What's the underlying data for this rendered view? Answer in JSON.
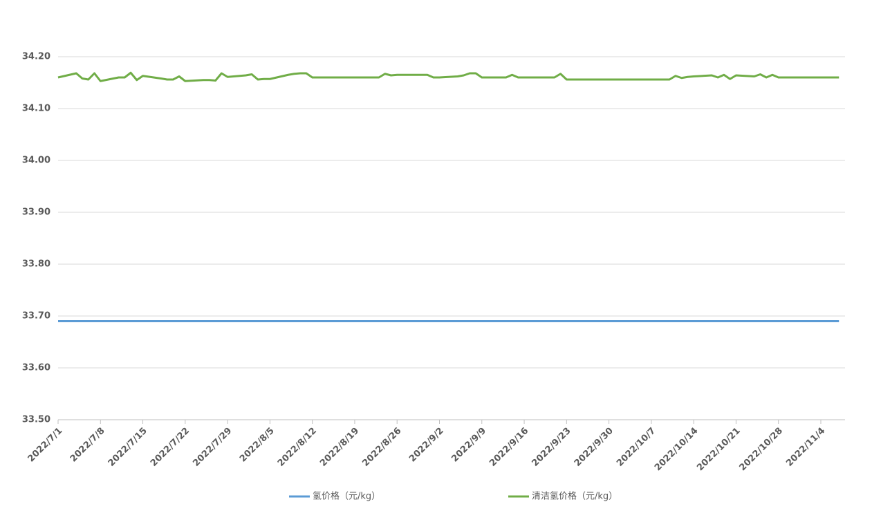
{
  "chart_data": {
    "type": "line",
    "x": [
      "2022/7/1",
      "2022/7/4",
      "2022/7/5",
      "2022/7/6",
      "2022/7/7",
      "2022/7/8",
      "2022/7/11",
      "2022/7/12",
      "2022/7/13",
      "2022/7/14",
      "2022/7/15",
      "2022/7/18",
      "2022/7/19",
      "2022/7/20",
      "2022/7/21",
      "2022/7/22",
      "2022/7/25",
      "2022/7/26",
      "2022/7/27",
      "2022/7/28",
      "2022/7/29",
      "2022/8/1",
      "2022/8/2",
      "2022/8/3",
      "2022/8/4",
      "2022/8/5",
      "2022/8/8",
      "2022/8/9",
      "2022/8/10",
      "2022/8/11",
      "2022/8/12",
      "2022/8/15",
      "2022/8/16",
      "2022/8/17",
      "2022/8/18",
      "2022/8/19",
      "2022/8/22",
      "2022/8/23",
      "2022/8/24",
      "2022/8/25",
      "2022/8/26",
      "2022/8/29",
      "2022/8/30",
      "2022/8/31",
      "2022/9/1",
      "2022/9/2",
      "2022/9/5",
      "2022/9/6",
      "2022/9/7",
      "2022/9/8",
      "2022/9/9",
      "2022/9/12",
      "2022/9/13",
      "2022/9/14",
      "2022/9/15",
      "2022/9/16",
      "2022/9/19",
      "2022/9/20",
      "2022/9/21",
      "2022/9/22",
      "2022/9/23",
      "2022/9/26",
      "2022/9/27",
      "2022/9/28",
      "2022/9/29",
      "2022/9/30",
      "2022/10/10",
      "2022/10/11",
      "2022/10/12",
      "2022/10/13",
      "2022/10/14",
      "2022/10/17",
      "2022/10/18",
      "2022/10/19",
      "2022/10/20",
      "2022/10/21",
      "2022/10/24",
      "2022/10/25",
      "2022/10/26",
      "2022/10/27",
      "2022/10/28",
      "2022/10/31",
      "2022/11/1",
      "2022/11/2",
      "2022/11/3",
      "2022/11/4",
      "2022/11/7"
    ],
    "series": [
      {
        "name": "氢价格（元/kg）",
        "color": "#5b9bd5",
        "values": [
          33.69,
          33.69,
          33.69,
          33.69,
          33.69,
          33.69,
          33.69,
          33.69,
          33.69,
          33.69,
          33.69,
          33.69,
          33.69,
          33.69,
          33.69,
          33.69,
          33.69,
          33.69,
          33.69,
          33.69,
          33.69,
          33.69,
          33.69,
          33.69,
          33.69,
          33.69,
          33.69,
          33.69,
          33.69,
          33.69,
          33.69,
          33.69,
          33.69,
          33.69,
          33.69,
          33.69,
          33.69,
          33.69,
          33.69,
          33.69,
          33.69,
          33.69,
          33.69,
          33.69,
          33.69,
          33.69,
          33.69,
          33.69,
          33.69,
          33.69,
          33.69,
          33.69,
          33.69,
          33.69,
          33.69,
          33.69,
          33.69,
          33.69,
          33.69,
          33.69,
          33.69,
          33.69,
          33.69,
          33.69,
          33.69,
          33.69,
          33.69,
          33.69,
          33.69,
          33.69,
          33.69,
          33.69,
          33.69,
          33.69,
          33.69,
          33.69,
          33.69,
          33.69,
          33.69,
          33.69,
          33.69,
          33.69,
          33.69,
          33.69,
          33.69,
          33.69,
          33.69
        ]
      },
      {
        "name": "清洁氢价格（元/kg）",
        "color": "#70ad47",
        "values": [
          34.16,
          34.168,
          34.158,
          34.156,
          34.168,
          34.153,
          34.16,
          34.16,
          34.169,
          34.155,
          34.163,
          34.158,
          34.156,
          34.156,
          34.162,
          34.153,
          34.155,
          34.155,
          34.154,
          34.168,
          34.161,
          34.164,
          34.166,
          34.156,
          34.157,
          34.157,
          34.165,
          34.167,
          34.168,
          34.168,
          34.16,
          34.16,
          34.16,
          34.16,
          34.16,
          34.16,
          34.16,
          34.16,
          34.167,
          34.164,
          34.165,
          34.165,
          34.165,
          34.165,
          34.16,
          34.16,
          34.162,
          34.164,
          34.168,
          34.168,
          34.16,
          34.16,
          34.16,
          34.165,
          34.16,
          34.16,
          34.16,
          34.16,
          34.16,
          34.167,
          34.156,
          34.156,
          34.156,
          34.156,
          34.156,
          34.156,
          34.156,
          34.163,
          34.159,
          34.161,
          34.162,
          34.164,
          34.16,
          34.165,
          34.157,
          34.164,
          34.162,
          34.166,
          34.16,
          34.165,
          34.16,
          34.16,
          34.16,
          34.16,
          34.16,
          34.16,
          34.16
        ]
      }
    ],
    "xlim": [
      "2022/7/1",
      "2022/11/8"
    ],
    "xticks": [
      "2022/7/1",
      "2022/7/8",
      "2022/7/15",
      "2022/7/22",
      "2022/7/29",
      "2022/8/5",
      "2022/8/12",
      "2022/8/19",
      "2022/8/26",
      "2022/9/2",
      "2022/9/9",
      "2022/9/16",
      "2022/9/23",
      "2022/9/30",
      "2022/10/7",
      "2022/10/14",
      "2022/10/21",
      "2022/10/28",
      "2022/11/4"
    ],
    "ylim": [
      33.5,
      34.2
    ],
    "yticks": [
      {
        "value": 33.5,
        "label": "33.50"
      },
      {
        "value": 33.6,
        "label": "33.60"
      },
      {
        "value": 33.7,
        "label": "33.70"
      },
      {
        "value": 33.8,
        "label": "33.80"
      },
      {
        "value": 33.9,
        "label": "33.90"
      },
      {
        "value": 34,
        "label": "34.00"
      },
      {
        "value": 34.1,
        "label": "34.10"
      },
      {
        "value": 34.2,
        "label": "34.20"
      }
    ],
    "grid": true,
    "legend": "bottom"
  }
}
